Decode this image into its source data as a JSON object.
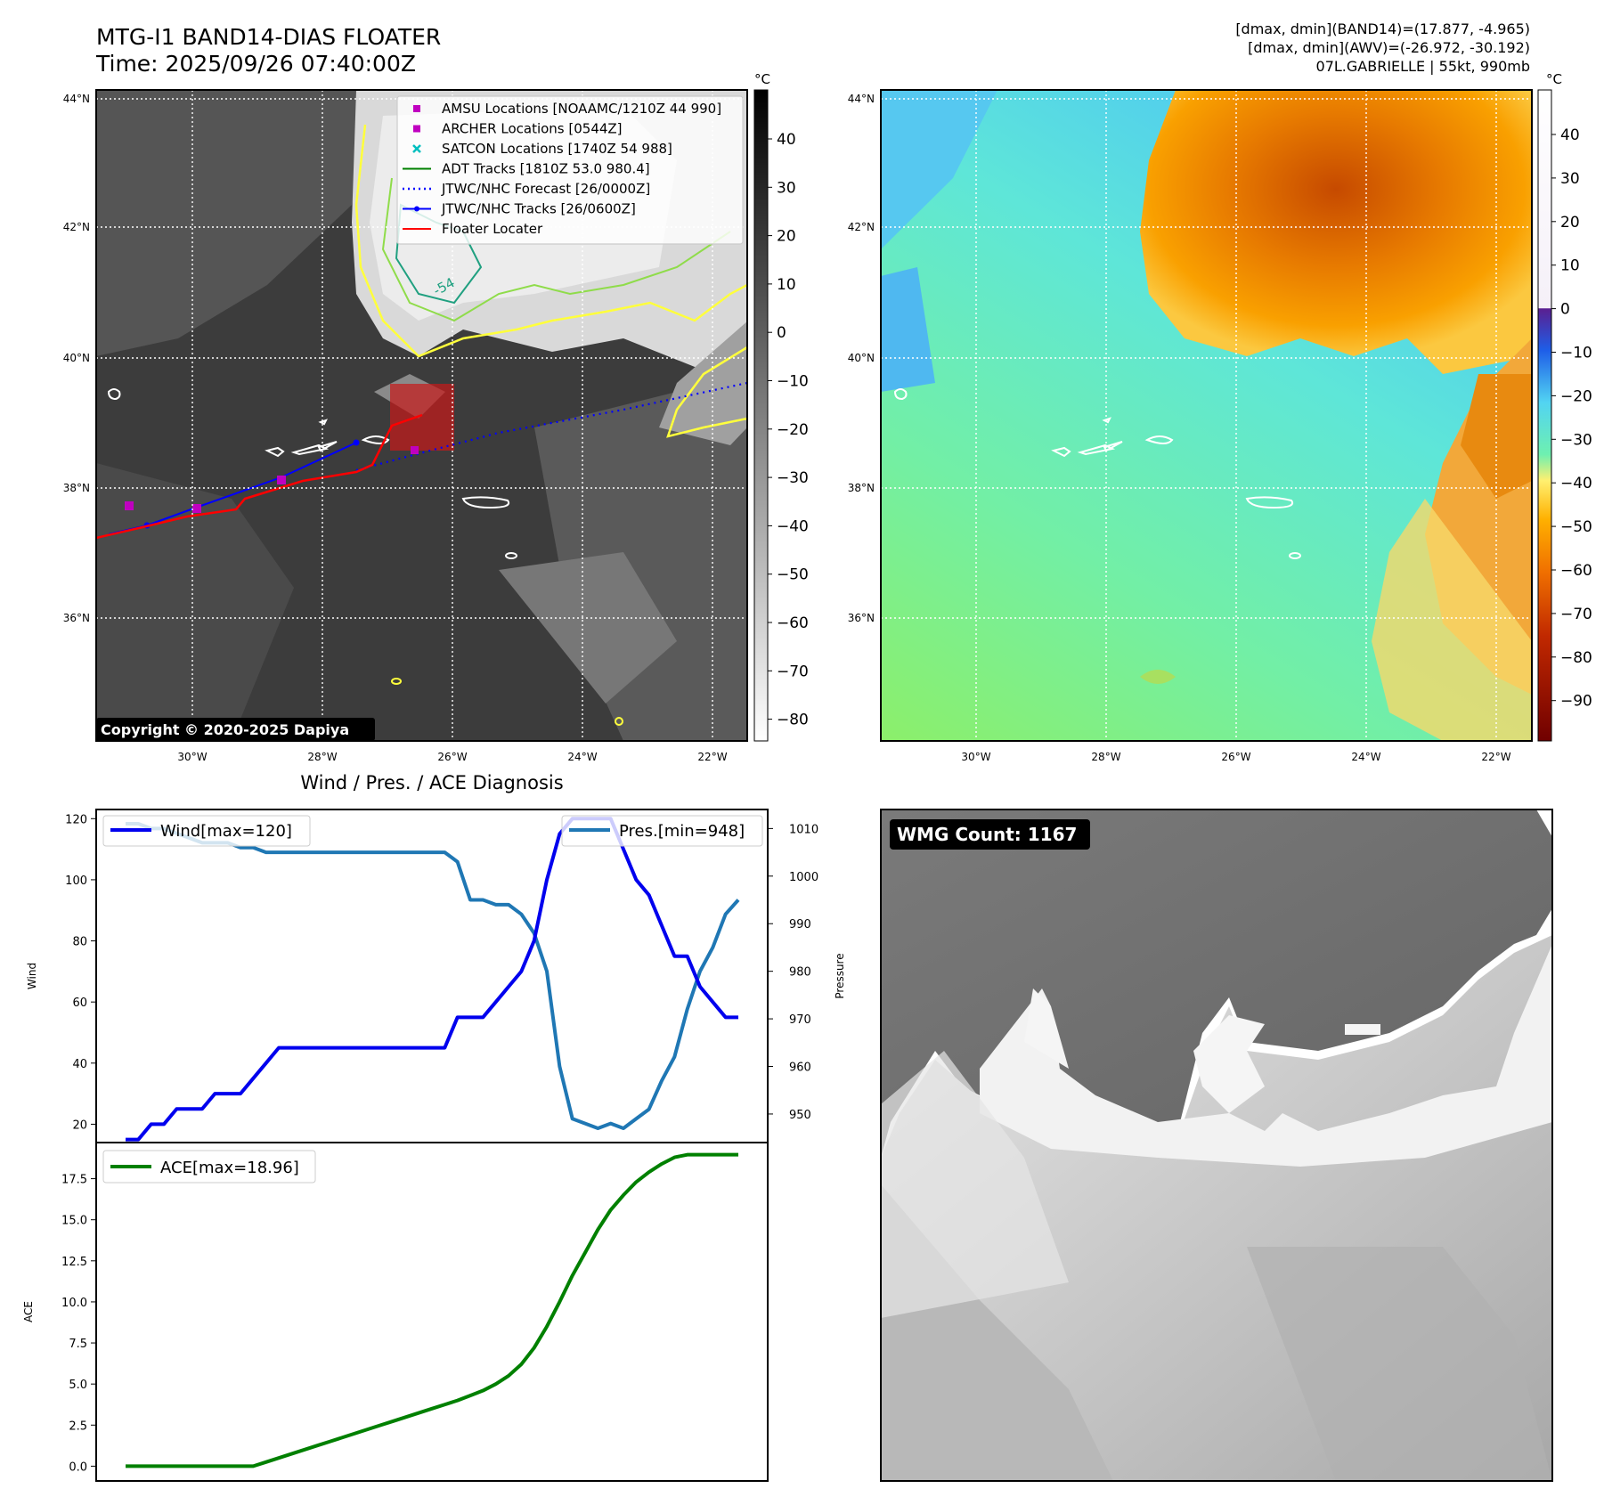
{
  "header": {
    "title_line1": "MTG-I1 BAND14-DIAS FLOATER",
    "title_line2": "Time: 2025/09/26 07:40:00Z",
    "stats_line1": "[dmax, dmin](BAND14)=(17.877, -4.965)",
    "stats_line2": "[dmax, dmin](AWV)=(-26.972, -30.192)",
    "stats_line3": "07L.GABRIELLE | 55kt, 990mb"
  },
  "map_axes": {
    "lat_labels": [
      "44°N",
      "42°N",
      "40°N",
      "38°N",
      "36°N"
    ],
    "lon_labels": [
      "30°W",
      "28°W",
      "26°W",
      "24°W",
      "22°W"
    ]
  },
  "ir_panel": {
    "legend": [
      {
        "label": "AMSU Locations [NOAAMC/1210Z 44 990]",
        "marker": "square",
        "color": "#c000c0"
      },
      {
        "label": "ARCHER Locations [0544Z]",
        "marker": "square",
        "color": "#c000c0"
      },
      {
        "label": "SATCON Locations [1740Z 54 988]",
        "marker": "x",
        "color": "#00bfbf"
      },
      {
        "label": "ADT Tracks [1810Z 53.0 980.4]",
        "marker": "line",
        "color": "#008000"
      },
      {
        "label": "JTWC/NHC Forecast [26/0000Z]",
        "marker": "dotted",
        "color": "#0000ff"
      },
      {
        "label": "JTWC/NHC Tracks [26/0600Z]",
        "marker": "line-dot",
        "color": "#0000ff"
      },
      {
        "label": "Floater Locater",
        "marker": "line",
        "color": "#ff0000"
      }
    ],
    "copyright": "Copyright © 2020-2025 Dapiya",
    "contour_label": "-54",
    "colorbar_unit": "°C",
    "colorbar_ticks": [
      "40",
      "30",
      "20",
      "10",
      "0",
      "−10",
      "−20",
      "−30",
      "−40",
      "−50",
      "−60",
      "−70",
      "−80"
    ]
  },
  "wv_panel": {
    "colorbar_unit": "°C",
    "colorbar_ticks": [
      "40",
      "30",
      "20",
      "10",
      "0",
      "−10",
      "−20",
      "−30",
      "−40",
      "−50",
      "−60",
      "−70",
      "−80",
      "−90"
    ]
  },
  "diag": {
    "title": "Wind / Pres. / ACE Diagnosis",
    "wind_legend": "Wind[max=120]",
    "pres_legend": "Pres.[min=948]",
    "ace_legend": "ACE[max=18.96]",
    "wind_ylabel": "Wind",
    "pres_ylabel": "Pressure",
    "ace_ylabel": "ACE",
    "wind_ticks": [
      "120",
      "100",
      "80",
      "60",
      "40",
      "20"
    ],
    "pres_ticks": [
      "1010",
      "1000",
      "990",
      "980",
      "970",
      "960",
      "950"
    ],
    "ace_ticks": [
      "17.5",
      "15.0",
      "12.5",
      "10.0",
      "7.5",
      "5.0",
      "2.5",
      "0.0"
    ]
  },
  "wmg_panel": {
    "badge": "WMG Count: 1167"
  },
  "chart_data": [
    {
      "type": "line",
      "title": "Wind / Pres. / ACE Diagnosis",
      "xlabel": "",
      "series": [
        {
          "name": "Wind[max=120]",
          "axis": "left",
          "color": "#0000ee",
          "values": [
            15,
            15,
            20,
            20,
            25,
            25,
            25,
            30,
            30,
            30,
            35,
            40,
            45,
            45,
            45,
            45,
            45,
            45,
            45,
            45,
            45,
            45,
            45,
            45,
            45,
            45,
            55,
            55,
            55,
            60,
            65,
            70,
            80,
            100,
            115,
            120,
            120,
            120,
            120,
            110,
            100,
            95,
            85,
            75,
            75,
            65,
            60,
            55,
            55
          ]
        },
        {
          "name": "Pres.[min=948]",
          "axis": "right",
          "color": "#1f77b4",
          "values": [
            1011,
            1011,
            1010,
            1010,
            1009,
            1008,
            1007,
            1007,
            1007,
            1006,
            1006,
            1005,
            1005,
            1005,
            1005,
            1005,
            1005,
            1005,
            1005,
            1005,
            1005,
            1005,
            1005,
            1005,
            1005,
            1005,
            1003,
            995,
            995,
            994,
            994,
            992,
            988,
            980,
            960,
            949,
            948,
            947,
            948,
            947,
            949,
            951,
            957,
            962,
            972,
            980,
            985,
            992,
            995
          ]
        }
      ],
      "ylabel": "Wind",
      "ylim": [
        14,
        123
      ],
      "y2label": "Pressure",
      "y2lim": [
        944,
        1014
      ]
    },
    {
      "type": "line",
      "title": "",
      "series": [
        {
          "name": "ACE[max=18.96]",
          "color": "#008000",
          "values": [
            0,
            0,
            0,
            0,
            0,
            0,
            0,
            0,
            0,
            0,
            0,
            0.25,
            0.5,
            0.75,
            1.0,
            1.25,
            1.5,
            1.75,
            2.0,
            2.25,
            2.5,
            2.75,
            3.0,
            3.25,
            3.5,
            3.75,
            4.0,
            4.3,
            4.6,
            5.0,
            5.5,
            6.2,
            7.2,
            8.5,
            10.0,
            11.6,
            13.0,
            14.4,
            15.6,
            16.5,
            17.3,
            17.9,
            18.4,
            18.8,
            18.96,
            18.96,
            18.96,
            18.96,
            18.96
          ]
        }
      ],
      "ylabel": "ACE",
      "ylim": [
        -0.9,
        19.7
      ]
    }
  ]
}
